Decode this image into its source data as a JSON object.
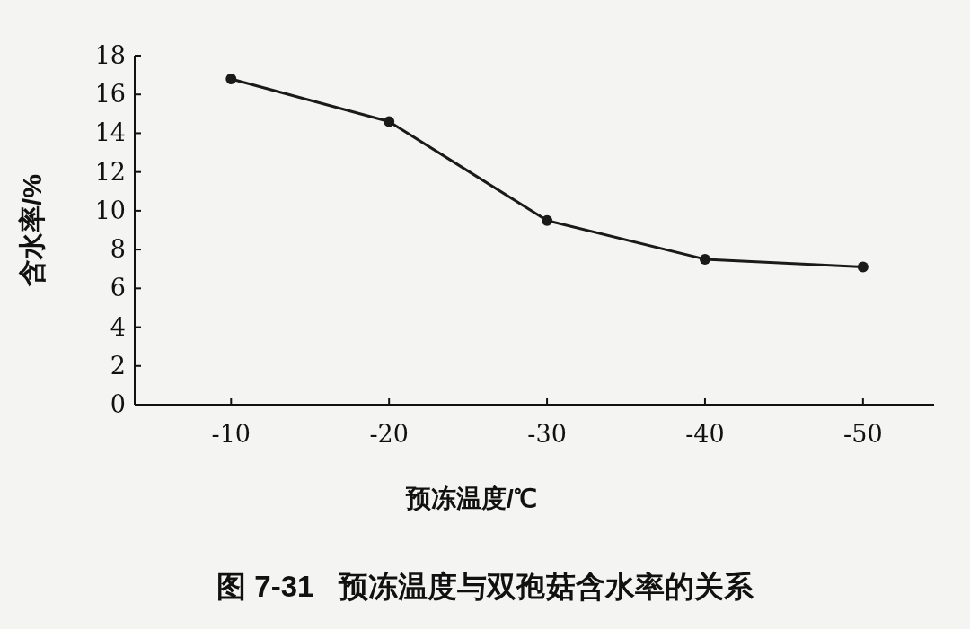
{
  "chart_data": {
    "type": "line",
    "title": "图 7-31   预冻温度与双孢菇含水率的关系",
    "xlabel": "预冻温度/℃",
    "ylabel": "含水率/%",
    "categories": [
      "-10",
      "-20",
      "-30",
      "-40",
      "-50"
    ],
    "series": [
      {
        "color": "#1a1a1a",
        "values": [
          16.8,
          14.6,
          9.5,
          7.5,
          7.1
        ]
      }
    ],
    "ylim": [
      0,
      18
    ],
    "yticks": [
      0,
      2,
      4,
      6,
      8,
      10,
      12,
      14,
      16,
      18
    ],
    "marker": "circle",
    "line_style": "solid"
  }
}
